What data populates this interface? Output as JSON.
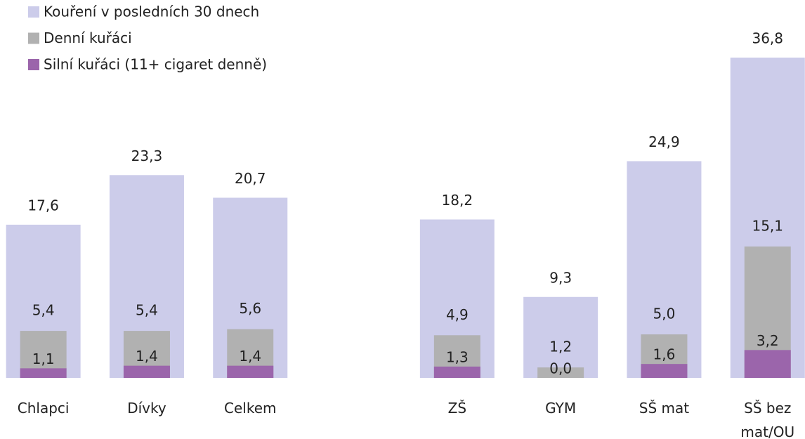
{
  "chart_data": {
    "type": "overlapping_bar",
    "categories": [
      "Chlapci",
      "Dívky",
      "Celkem",
      null,
      "ZŠ",
      "GYM",
      "SŠ mat",
      "SŠ bez mat/OU"
    ],
    "series": [
      {
        "name": "Kouření v posledních 30 dnech",
        "color": "#ccccea",
        "values": [
          17.6,
          23.3,
          20.7,
          null,
          18.2,
          9.3,
          24.9,
          36.8
        ],
        "value_labels": [
          "17,6",
          "23,3",
          "20,7",
          null,
          "18,2",
          "9,3",
          "24,9",
          "36,8"
        ]
      },
      {
        "name": "Denní kuřáci",
        "color": "#b1b1b1",
        "values": [
          5.4,
          5.4,
          5.6,
          null,
          4.9,
          1.2,
          5.0,
          15.1
        ],
        "value_labels": [
          "5,4",
          "5,4",
          "5,6",
          null,
          "4,9",
          "1,2",
          "5,0",
          "15,1"
        ]
      },
      {
        "name": "Silní kuřáci (11+ cigaret denně)",
        "color": "#9b65ab",
        "values": [
          1.1,
          1.4,
          1.4,
          null,
          1.3,
          0.0,
          1.6,
          3.2
        ],
        "value_labels": [
          "1,1",
          "1,4",
          "1,4",
          null,
          "1,3",
          "0,0",
          "1,6",
          "3,2"
        ]
      }
    ],
    "legend": "top-left"
  }
}
